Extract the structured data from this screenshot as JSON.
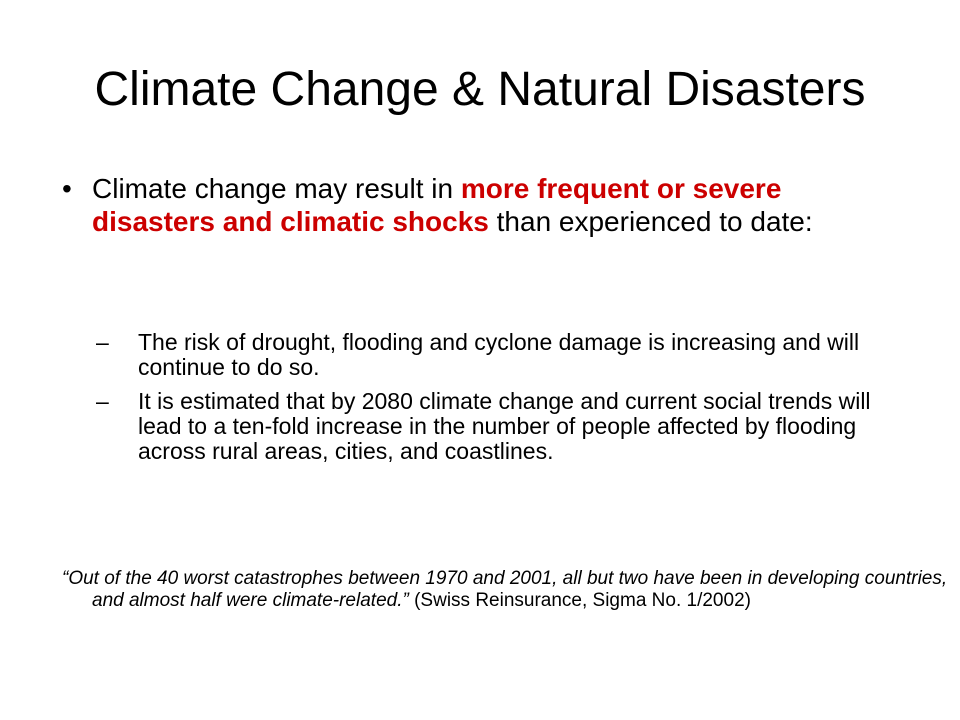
{
  "slide": {
    "title": "Climate Change & Natural Disasters",
    "bullet": {
      "marker": "•",
      "text_before": "Climate change may result in ",
      "highlight": "more frequent or severe disasters and climatic shocks",
      "text_after": " than experienced to date:",
      "highlight_color": "#cc0000"
    },
    "sub_bullets": [
      {
        "marker": "–",
        "text": "The risk of drought, flooding and cyclone damage is increasing and will continue to do so."
      },
      {
        "marker": "–",
        "text": "It is estimated that by 2080 climate change and current social trends will lead to a ten-fold increase in the number of people affected by flooding across rural areas, cities, and coastlines."
      }
    ],
    "quote": {
      "text": "“Out of the 40 worst catastrophes between 1970 and 2001, all but two have been in developing countries, and almost half were climate-related.”",
      "source": " (Swiss Reinsurance, Sigma No. 1/2002)"
    }
  }
}
